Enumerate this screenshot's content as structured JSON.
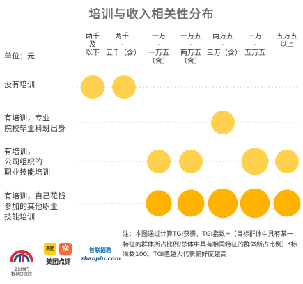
{
  "chart_data": {
    "type": "bubble-matrix",
    "title": "培训与收入相关性分布",
    "unit_label": "单位：元",
    "columns": [
      "两千\n及\n以下",
      "两千\n-\n五千（含）",
      "一万\n-\n一万五（含）",
      "一万五\n-\n两万五（含）",
      "两万五\n-\n三万（含）",
      "三万\n-\n五万五",
      "五万五\n以上"
    ],
    "rows": [
      {
        "label": "没有培训",
        "values": [
          1,
          1,
          null,
          null,
          null,
          null,
          null
        ]
      },
      {
        "label": "有培训，专业\n院校毕业科班出身",
        "values": [
          null,
          null,
          null,
          null,
          1,
          null,
          null
        ]
      },
      {
        "label": "有培训，\n公司组织的\n职业技能培训",
        "values": [
          null,
          null,
          1,
          1,
          null,
          1.15,
          1
        ]
      },
      {
        "label": "有培训，自己花钱\n参加的其他职业\n技能培训",
        "values": [
          null,
          null,
          1.1,
          1.15,
          1.25,
          1.25,
          1.15
        ]
      }
    ],
    "colors": {
      "light": "#ffd04d",
      "dark": "#ffb300",
      "gridline": "#cccccc"
    },
    "note": "注：本图通过计算TGI获得，TGI指数=（目标群体中具有某一特征的群体所占比例/总体中具有相同特征的群体所占比例）*标准数100。TGI值越大代表偏好度越高"
  },
  "logos": {
    "cbn_name": "21世纪",
    "cbn_sub": "数据研究院",
    "meituan_badge": "美团",
    "dianping_badge": "众",
    "meituan_dianping": "美团点评",
    "zhaopin_name": "智联招聘",
    "zhaopin_url": "zhaopin.com"
  }
}
